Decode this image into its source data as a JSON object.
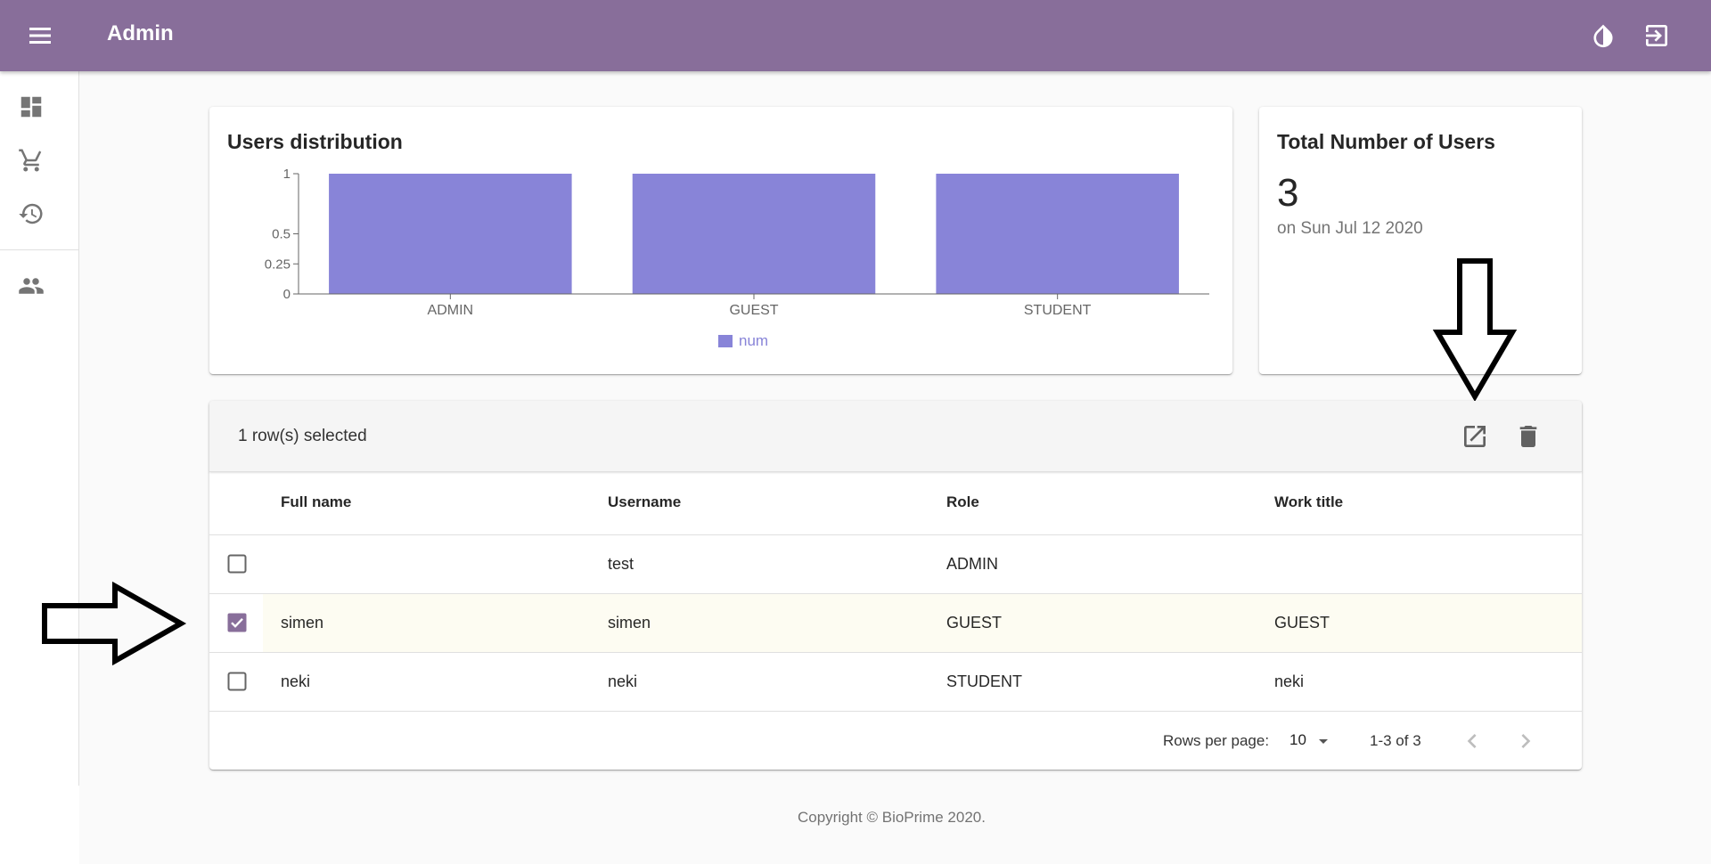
{
  "appbar": {
    "title": "Admin",
    "color": "#886e9a",
    "icons": [
      "menu-icon",
      "theme-contrast-icon",
      "logout-icon"
    ]
  },
  "drawer": {
    "items": [
      {
        "icon": "dashboard-icon"
      },
      {
        "icon": "cart-icon"
      },
      {
        "icon": "history-icon"
      },
      {
        "icon": "users-icon"
      }
    ]
  },
  "chart_card": {
    "title": "Users distribution"
  },
  "chart_data": {
    "type": "bar",
    "categories": [
      "ADMIN",
      "GUEST",
      "STUDENT"
    ],
    "series": [
      {
        "name": "num",
        "values": [
          1,
          1,
          1
        ],
        "color": "#8884d8"
      }
    ],
    "yticks": [
      "0",
      "0.25",
      "0.5",
      "1"
    ],
    "ylim": [
      0,
      1
    ],
    "legend": "bottom-center",
    "grid": false
  },
  "total_card": {
    "title": "Total Number of Users",
    "value": "3",
    "date": "on Sun Jul 12 2020"
  },
  "table": {
    "selected_text": "1 row(s) selected",
    "columns": [
      "Full name",
      "Username",
      "Role",
      "Work title"
    ],
    "rows": [
      {
        "full_name": "",
        "username": "test",
        "role": "ADMIN",
        "work_title": "",
        "checked": false
      },
      {
        "full_name": "simen",
        "username": "simen",
        "role": "GUEST",
        "work_title": "GUEST",
        "checked": true
      },
      {
        "full_name": "neki",
        "username": "neki",
        "role": "STUDENT",
        "work_title": "neki",
        "checked": false
      }
    ],
    "pagination": {
      "rows_per_page_label": "Rows per page:",
      "rows_per_page": "10",
      "range": "1-3 of 3"
    }
  },
  "footer": {
    "text": "Copyright © BioPrime 2020."
  },
  "accent_color": "#886e9a"
}
